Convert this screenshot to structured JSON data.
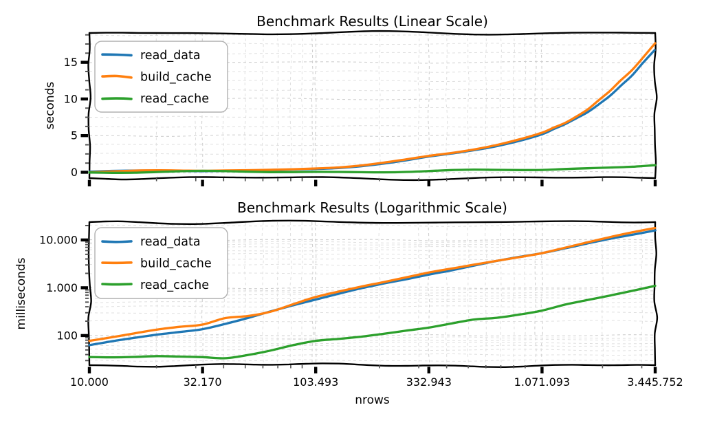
{
  "figure": {
    "background": "#ffffff",
    "text_color": "#000000",
    "grid_major_color": "#cfcfcf",
    "grid_minor_color": "#dfdfdf",
    "style": "xkcd-handdrawn"
  },
  "legend": {
    "entries": [
      {
        "label": "read_data",
        "color": "#1f77b4"
      },
      {
        "label": "build_cache",
        "color": "#ff7f0e"
      },
      {
        "label": "read_cache",
        "color": "#2ca02c"
      }
    ]
  },
  "chart_data": [
    {
      "type": "line",
      "title": "Benchmark Results (Linear Scale)",
      "xlabel": "",
      "ylabel": "seconds",
      "x_scale": "log",
      "y_scale": "linear",
      "grid": true,
      "legend_position": "upper left",
      "xlim": [
        10000,
        3445752
      ],
      "ylim": [
        -0.8,
        19.0
      ],
      "x": [
        10000,
        12633,
        15959,
        20161,
        25469,
        32170,
        40646,
        51349,
        64872,
        81954,
        103493,
        130770,
        165205,
        208710,
        263672,
        332943,
        420634,
        531417,
        671378,
        848185,
        1071093,
        1353680,
        1710241,
        2160716,
        2729882,
        3445752
      ],
      "series": [
        {
          "name": "read_data",
          "color": "#1f77b4",
          "values": [
            0.062,
            0.072,
            0.085,
            0.103,
            0.122,
            0.142,
            0.18,
            0.235,
            0.32,
            0.43,
            0.56,
            0.72,
            0.93,
            1.2,
            1.55,
            2.0,
            2.42,
            2.93,
            3.55,
            4.3,
            5.2,
            6.57,
            8.31,
            10.5,
            13.1,
            16.6
          ]
        },
        {
          "name": "build_cache",
          "color": "#ff7f0e",
          "values": [
            0.08,
            0.092,
            0.107,
            0.126,
            0.146,
            0.168,
            0.24,
            0.27,
            0.33,
            0.46,
            0.63,
            0.8,
            1.02,
            1.29,
            1.65,
            2.1,
            2.54,
            3.08,
            3.72,
            4.48,
            5.4,
            6.84,
            8.65,
            10.95,
            13.9,
            17.6
          ]
        },
        {
          "name": "read_cache",
          "color": "#2ca02c",
          "values": [
            0.037,
            0.036,
            0.036,
            0.037,
            0.036,
            0.035,
            0.033,
            0.038,
            0.047,
            0.062,
            0.079,
            0.089,
            0.1,
            0.112,
            0.125,
            0.14,
            0.17,
            0.21,
            0.235,
            0.28,
            0.34,
            0.45,
            0.56,
            0.7,
            0.88,
            1.1
          ]
        }
      ],
      "yticks": {
        "values": [
          0,
          5,
          10,
          15
        ],
        "labels": [
          "0",
          "5",
          "10",
          "15"
        ],
        "minor_step": 1.25
      },
      "xticks": {
        "values": [
          10000,
          32170,
          103493,
          332943,
          1071093,
          3445752
        ],
        "labels": [
          "",
          "",
          "",
          "",
          "",
          ""
        ]
      }
    },
    {
      "type": "line",
      "title": "Benchmark Results (Logarithmic Scale)",
      "xlabel": "nrows",
      "ylabel": "milliseconds",
      "x_scale": "log",
      "y_scale": "log",
      "grid": true,
      "legend_position": "upper left",
      "xlim": [
        10000,
        3445752
      ],
      "ylim": [
        24,
        23600
      ],
      "x": [
        10000,
        12633,
        15959,
        20161,
        25469,
        32170,
        40646,
        51349,
        64872,
        81954,
        103493,
        130770,
        165205,
        208710,
        263672,
        332943,
        420634,
        531417,
        671378,
        848185,
        1071093,
        1353680,
        1710241,
        2160716,
        2729882,
        3445752
      ],
      "series": [
        {
          "name": "read_data",
          "color": "#1f77b4",
          "values": [
            62,
            72,
            85,
            103,
            122,
            142,
            180,
            235,
            320,
            430,
            560,
            720,
            930,
            1200,
            1550,
            2000,
            2420,
            2930,
            3550,
            4300,
            5200,
            6570,
            8310,
            10500,
            13100,
            16600
          ]
        },
        {
          "name": "build_cache",
          "color": "#ff7f0e",
          "values": [
            80,
            92,
            107,
            126,
            146,
            168,
            240,
            270,
            330,
            460,
            630,
            800,
            1020,
            1290,
            1650,
            2100,
            2540,
            3080,
            3720,
            4480,
            5400,
            6840,
            8650,
            10950,
            13900,
            17600
          ]
        },
        {
          "name": "read_cache",
          "color": "#2ca02c",
          "values": [
            37,
            36,
            36,
            37,
            36,
            35,
            33,
            38,
            47,
            62,
            79,
            89,
            100,
            112,
            125,
            140,
            170,
            210,
            235,
            280,
            340,
            450,
            560,
            700,
            880,
            1100
          ]
        }
      ],
      "yticks": {
        "values": [
          100,
          1000,
          10000
        ],
        "labels": [
          "100",
          "1.000",
          "10.000"
        ]
      },
      "xticks": {
        "values": [
          10000,
          32170,
          103493,
          332943,
          1071093,
          3445752
        ],
        "labels": [
          "10.000",
          "32.170",
          "103.493",
          "332.943",
          "1.071.093",
          "3.445.752"
        ]
      }
    }
  ]
}
